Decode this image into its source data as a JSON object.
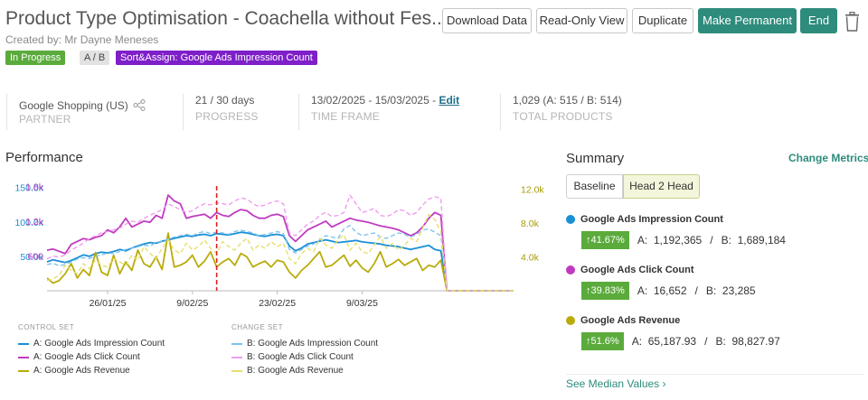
{
  "header": {
    "title": "Product Type Optimisation - Coachella without Fes...",
    "created_by": "Created by: Mr Dayne Meneses",
    "badges": {
      "status": "In Progress",
      "ab": "A / B",
      "sort": "Sort&Assign: Google Ads Impression Count"
    },
    "buttons": {
      "download": "Download Data",
      "read_only": "Read-Only View",
      "duplicate": "Duplicate",
      "make_permanent": "Make Permanent",
      "end": "End"
    }
  },
  "stats": {
    "partner": {
      "value": "Google Shopping (US)",
      "label": "PARTNER"
    },
    "progress": {
      "value": "21 / 30 days",
      "label": "PROGRESS"
    },
    "timeframe": {
      "value": "13/02/2025 - 15/03/2025 - ",
      "edit": "Edit",
      "label": "TIME FRAME"
    },
    "products": {
      "value": "1,029 (A: 515 / B: 514)",
      "label": "TOTAL PRODUCTS"
    }
  },
  "performance": {
    "title": "Performance",
    "legend": {
      "control_head": "CONTROL SET",
      "change_head": "CHANGE SET",
      "control": [
        "A: Google Ads Impression Count",
        "A: Google Ads Click Count",
        "A: Google Ads Revenue"
      ],
      "change": [
        "B: Google Ads Impression Count",
        "B: Google Ads Click Count",
        "B: Google Ads Revenue"
      ]
    }
  },
  "chart_data": {
    "type": "line",
    "x_ticks": [
      "26/01/25",
      "9/02/25",
      "23/02/25",
      "9/03/25"
    ],
    "start_date": "2025-01-16",
    "marker_date": "2025-02-13",
    "y_left_impressions": {
      "ticks": [
        "50.0k",
        "100.0k",
        "150.0k"
      ],
      "range": [
        0,
        160000
      ],
      "color": "#1a8fd6"
    },
    "y_left_clicks": {
      "ticks": [
        "600",
        "1.2k",
        "1.8k"
      ],
      "range": [
        0,
        1900
      ],
      "color": "#c03ac0"
    },
    "y_right_revenue": {
      "ticks": [
        "4.0k",
        "8.0k",
        "12.0k"
      ],
      "range": [
        0,
        13000
      ],
      "color": "#b9ab0a"
    },
    "series": [
      {
        "name": "A: Google Ads Impression Count",
        "color": "#1a8fd6",
        "dash": false,
        "axis": "imp",
        "values": [
          42000,
          45000,
          43000,
          41000,
          44000,
          48000,
          52000,
          50000,
          54000,
          56000,
          55000,
          57000,
          60000,
          58000,
          62000,
          65000,
          68000,
          70000,
          69000,
          72000,
          74000,
          76000,
          78000,
          80000,
          79000,
          81000,
          82000,
          80000,
          83000,
          82000,
          81000,
          83000,
          85000,
          84000,
          82000,
          80000,
          79000,
          81000,
          82000,
          80000,
          65000,
          58000,
          62000,
          68000,
          70000,
          72000,
          74000,
          72000,
          70000,
          71000,
          72000,
          73000,
          71000,
          70000,
          69000,
          68000,
          66000,
          65000,
          64000,
          62000,
          60000,
          62000,
          64000,
          66000,
          60000,
          58000,
          0,
          0,
          0,
          0,
          0,
          0,
          0,
          0,
          0,
          0,
          0,
          0
        ]
      },
      {
        "name": "A: Google Ads Click Count",
        "color": "#c03ac0",
        "dash": false,
        "axis": "clk",
        "values": [
          700,
          720,
          680,
          640,
          800,
          850,
          900,
          880,
          920,
          950,
          1050,
          1000,
          1100,
          1250,
          1100,
          1150,
          1200,
          1180,
          1300,
          1250,
          1650,
          1550,
          1500,
          1250,
          1280,
          1300,
          1320,
          1250,
          1350,
          1300,
          1280,
          1350,
          1400,
          1380,
          1300,
          1250,
          1250,
          1300,
          1320,
          1280,
          950,
          850,
          950,
          1050,
          1100,
          1150,
          1200,
          1100,
          1150,
          1200,
          1250,
          1220,
          1200,
          1180,
          1150,
          1120,
          1100,
          1080,
          1050,
          1000,
          950,
          1000,
          1100,
          1250,
          1350,
          1300,
          0,
          0,
          0,
          0,
          0,
          0,
          0,
          0,
          0,
          0,
          0,
          0
        ]
      },
      {
        "name": "A: Google Ads Revenue",
        "color": "#b9ab0a",
        "dash": false,
        "axis": "rev",
        "values": [
          1500,
          900,
          1200,
          2000,
          3200,
          1500,
          2500,
          1800,
          4500,
          2200,
          1800,
          4200,
          2000,
          3400,
          2400,
          4800,
          3200,
          2800,
          4000,
          2500,
          6800,
          2800,
          3000,
          3400,
          4200,
          2800,
          3500,
          4600,
          2800,
          3400,
          3800,
          3000,
          4400,
          4000,
          2800,
          3200,
          3500,
          2800,
          3600,
          3400,
          2200,
          1500,
          2400,
          3000,
          3800,
          4600,
          2800,
          3000,
          3600,
          4200,
          2900,
          3600,
          2700,
          2200,
          3200,
          4600,
          2800,
          3200,
          3700,
          3000,
          3400,
          3800,
          2400,
          3000,
          2800,
          3600,
          0,
          0,
          0,
          0,
          0,
          0,
          0,
          0,
          0,
          0,
          0,
          0
        ]
      },
      {
        "name": "B: Google Ads Impression Count",
        "color": "#7fc3ee",
        "dash": true,
        "axis": "imp",
        "values": [
          38000,
          40000,
          36000,
          38000,
          42000,
          46000,
          48000,
          47000,
          50000,
          52000,
          55000,
          54000,
          57000,
          60000,
          62000,
          64000,
          66000,
          65000,
          70000,
          72000,
          75000,
          78000,
          80000,
          82000,
          80000,
          84000,
          86000,
          83000,
          85000,
          84000,
          82000,
          86000,
          88000,
          86000,
          84000,
          80000,
          82000,
          84000,
          86000,
          83000,
          60000,
          55000,
          60000,
          65000,
          68000,
          74000,
          80000,
          78000,
          76000,
          90000,
          95000,
          85000,
          80000,
          82000,
          84000,
          78000,
          76000,
          80000,
          84000,
          82000,
          78000,
          82000,
          88000,
          90000,
          85000,
          80000,
          0,
          0,
          0,
          0,
          0,
          0,
          0,
          0,
          0,
          0,
          0,
          0
        ]
      },
      {
        "name": "B: Google Ads Click Count",
        "color": "#ef9cf0",
        "dash": true,
        "axis": "clk",
        "values": [
          550,
          600,
          580,
          620,
          700,
          760,
          820,
          900,
          950,
          1000,
          1020,
          1050,
          1080,
          1150,
          1200,
          1180,
          1250,
          1300,
          1350,
          1400,
          1500,
          1450,
          1400,
          1350,
          1380,
          1450,
          1500,
          1480,
          1520,
          1500,
          1480,
          1550,
          1600,
          1580,
          1500,
          1450,
          1480,
          1520,
          1550,
          1500,
          1000,
          950,
          1050,
          1150,
          1200,
          1300,
          1350,
          1280,
          1300,
          1350,
          1650,
          1500,
          1350,
          1380,
          1420,
          1300,
          1280,
          1320,
          1400,
          1380,
          1300,
          1350,
          1480,
          1580,
          1620,
          1600,
          0,
          0,
          0,
          0,
          0,
          0,
          0,
          0,
          0,
          0,
          0,
          0
        ]
      },
      {
        "name": "B: Google Ads Revenue",
        "color": "#e6df6e",
        "dash": true,
        "axis": "rev",
        "values": [
          1200,
          1400,
          1800,
          3000,
          2400,
          2000,
          3200,
          2600,
          3600,
          3000,
          2800,
          3800,
          3400,
          3000,
          4200,
          3600,
          5200,
          4400,
          3800,
          5000,
          6000,
          4800,
          4400,
          5600,
          4800,
          5200,
          6000,
          5000,
          4400,
          5800,
          5200,
          4800,
          5600,
          6200,
          4800,
          5400,
          5000,
          5800,
          5200,
          5600,
          3800,
          3200,
          4400,
          5000,
          4600,
          6200,
          5400,
          5000,
          6000,
          6600,
          4800,
          5600,
          4600,
          4400,
          5400,
          6400,
          5000,
          5600,
          4800,
          5400,
          6200,
          5800,
          7400,
          9000,
          8400,
          7000,
          0,
          0,
          0,
          0,
          0,
          0,
          0,
          0,
          0,
          0,
          0,
          0
        ]
      }
    ]
  },
  "summary": {
    "title": "Summary",
    "change_metrics": "Change Metrics",
    "tabs": {
      "baseline": "Baseline",
      "h2h": "Head 2 Head"
    },
    "metrics": [
      {
        "name": "Google Ads Impression Count",
        "color": "#1a8fd6",
        "uplift": "↑41.67%",
        "a_label": "A:",
        "a": "1,192,365",
        "sep": "/",
        "b_label": "B:",
        "b": "1,689,184"
      },
      {
        "name": "Google Ads Click Count",
        "color": "#c03ac0",
        "uplift": "↑39.83%",
        "a_label": "A:",
        "a": "16,652",
        "sep": "/",
        "b_label": "B:",
        "b": "23,285"
      },
      {
        "name": "Google Ads Revenue",
        "color": "#b9ab0a",
        "uplift": "↑51.6%",
        "a_label": "A:",
        "a": "65,187.93",
        "sep": "/",
        "b_label": "B:",
        "b": "98,827.97"
      }
    ],
    "median": "See Median Values ›"
  }
}
